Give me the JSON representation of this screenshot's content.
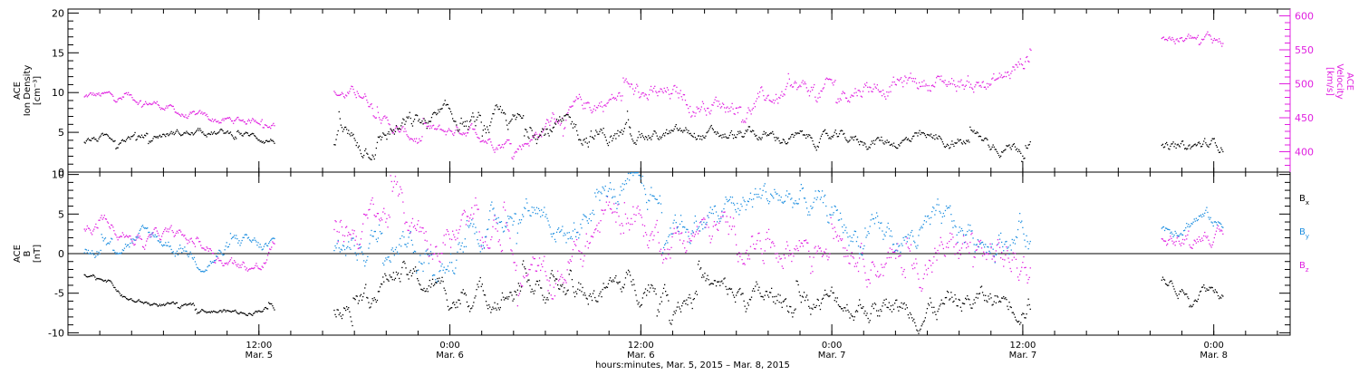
{
  "chart_data": [
    {
      "type": "scatter",
      "panel": "top",
      "left_axis": {
        "label_lines": [
          "ACE",
          "Ion Density",
          "[cm⁻³]"
        ],
        "ylim": [
          0,
          20.5
        ],
        "ticks": [
          0,
          5,
          10,
          15,
          20
        ],
        "color": "#000000"
      },
      "right_axis": {
        "label_lines": [
          "ACE",
          "Velocity",
          "[km/s]"
        ],
        "ylim": [
          370,
          610
        ],
        "ticks": [
          400,
          450,
          500,
          550,
          600
        ],
        "color": "#e020e0"
      },
      "series": [
        {
          "axis": "left",
          "color": "#000000",
          "segments": [
            {
              "x": [
                1,
                13
              ],
              "start": 4.0,
              "base": [
                [
                  1,
                  4.2
                ],
                [
                  3,
                  4.6
                ],
                [
                  5,
                  4.9
                ],
                [
                  7,
                  5.0
                ],
                [
                  9,
                  5.0
                ],
                [
                  11,
                  4.5
                ],
                [
                  13,
                  4.0
                ]
              ],
              "noise": 0.6
            },
            {
              "x": [
                16.7,
                35.3
              ],
              "start": 3.4,
              "base": [
                [
                  16.7,
                  3.4
                ],
                [
                  18.5,
                  3.4
                ],
                [
                  20,
                  5.5
                ],
                [
                  22,
                  6.0
                ],
                [
                  24,
                  6.5
                ],
                [
                  26,
                  6.5
                ],
                [
                  28,
                  6.0
                ],
                [
                  30,
                  5.5
                ],
                [
                  32,
                  5.0
                ],
                [
                  34,
                  4.5
                ],
                [
                  35.3,
                  4.5
                ]
              ],
              "noise": 1.6
            },
            {
              "x": [
                35.3,
                60.5
              ],
              "start": 4.5,
              "base": [
                [
                  35.3,
                  4.5
                ],
                [
                  38,
                  4.8
                ],
                [
                  42,
                  4.5
                ],
                [
                  46,
                  4.2
                ],
                [
                  50,
                  4.0
                ],
                [
                  54,
                  4.0
                ],
                [
                  58,
                  3.6
                ],
                [
                  60.5,
                  3.2
                ]
              ],
              "noise": 1.0
            },
            {
              "x": [
                68.7,
                72.6
              ],
              "start": 3.0,
              "base": [
                [
                  68.7,
                  3.0
                ],
                [
                  70,
                  2.8
                ],
                [
                  71,
                  3.5
                ],
                [
                  72.6,
                  3.6
                ]
              ],
              "noise": 1.0
            }
          ]
        },
        {
          "axis": "right",
          "color": "#e020e0",
          "segments": [
            {
              "x": [
                1,
                13
              ],
              "start": 480,
              "base": [
                [
                  1,
                  484
                ],
                [
                  3,
                  480
                ],
                [
                  5,
                  475
                ],
                [
                  7,
                  452
                ],
                [
                  9,
                  446
                ],
                [
                  11,
                  446
                ],
                [
                  12.2,
                  455
                ],
                [
                  13,
                  440
                ]
              ],
              "noise": 8
            },
            {
              "x": [
                16.7,
                30
              ],
              "start": 485,
              "base": [
                [
                  16.7,
                  486
                ],
                [
                  18.5,
                  482
                ],
                [
                  19.5,
                  440
                ],
                [
                  21,
                  420
                ],
                [
                  23,
                  425
                ],
                [
                  25,
                  440
                ],
                [
                  26,
                  420
                ],
                [
                  28,
                  415
                ],
                [
                  30,
                  440
                ]
              ],
              "noise": 12
            },
            {
              "x": [
                30,
                60.5
              ],
              "start": 450,
              "base": [
                [
                  30,
                  450
                ],
                [
                  34,
                  480
                ],
                [
                  38,
                  480
                ],
                [
                  42,
                  470
                ],
                [
                  46,
                  490
                ],
                [
                  50,
                  500
                ],
                [
                  54,
                  505
                ],
                [
                  58,
                  500
                ],
                [
                  59.5,
                  530
                ],
                [
                  60.5,
                  555
                ]
              ],
              "noise": 18
            },
            {
              "x": [
                68.7,
                72.6
              ],
              "start": 570,
              "base": [
                [
                  68.7,
                  575
                ],
                [
                  70,
                  560
                ],
                [
                  71.5,
                  570
                ],
                [
                  72.6,
                  560
                ]
              ],
              "noise": 12
            }
          ]
        }
      ]
    },
    {
      "type": "scatter",
      "panel": "bottom",
      "axis": {
        "label_lines": [
          "ACE",
          "B",
          "[nT]"
        ],
        "ylim": [
          -10.3,
          10.3
        ],
        "ticks": [
          -10,
          -5,
          0,
          5,
          10
        ],
        "zero_line": true
      },
      "legend": {
        "position": "right",
        "items": [
          {
            "name": "Bx",
            "base": "B",
            "sub": "x",
            "color": "#000000"
          },
          {
            "name": "By",
            "base": "B",
            "sub": "y",
            "color": "#1e8fe0"
          },
          {
            "name": "Bz",
            "base": "B",
            "sub": "z",
            "color": "#e020e0"
          }
        ]
      },
      "series": [
        {
          "name": "Bx",
          "color": "#000000",
          "segments": [
            {
              "x": [
                1,
                13
              ],
              "start": -2.5,
              "base": [
                [
                  1,
                  -2.5
                ],
                [
                  2.2,
                  -3.0
                ],
                [
                  3.2,
                  -6.0
                ],
                [
                  5,
                  -6.4
                ],
                [
                  7,
                  -6.6
                ],
                [
                  9,
                  -7.2
                ],
                [
                  11,
                  -7.4
                ],
                [
                  12.2,
                  -6.5
                ],
                [
                  13,
                  -7.5
                ]
              ],
              "noise": 0.4
            },
            {
              "x": [
                16.7,
                60.5
              ],
              "start": -6.5,
              "base": [
                [
                  16.7,
                  -6.5
                ],
                [
                  18.5,
                  -5.5
                ],
                [
                  20,
                  -2.0
                ],
                [
                  22,
                  -4.0
                ],
                [
                  24,
                  -5.5
                ],
                [
                  28,
                  -4.5
                ],
                [
                  32,
                  -5.0
                ],
                [
                  36,
                  -3.5
                ],
                [
                  40,
                  -5.0
                ],
                [
                  44,
                  -6.0
                ],
                [
                  48,
                  -6.0
                ],
                [
                  52,
                  -7.0
                ],
                [
                  56,
                  -6.0
                ],
                [
                  60.5,
                  -5.5
                ]
              ],
              "noise": 2.0
            },
            {
              "x": [
                68.7,
                72.6
              ],
              "start": -3.5,
              "base": [
                [
                  68.7,
                  -3.5
                ],
                [
                  70,
                  -5.0
                ],
                [
                  71,
                  -3.5
                ],
                [
                  72.6,
                  -5.0
                ]
              ],
              "noise": 1.0
            }
          ]
        },
        {
          "name": "By",
          "color": "#1e8fe0",
          "segments": [
            {
              "x": [
                1,
                13
              ],
              "start": 0.5,
              "base": [
                [
                  1,
                  0.5
                ],
                [
                  3,
                  2.0
                ],
                [
                  5,
                  2.0
                ],
                [
                  7,
                  0.5
                ],
                [
                  8,
                  -1.0
                ],
                [
                  10,
                  1.0
                ],
                [
                  12,
                  0.5
                ],
                [
                  13,
                  1.0
                ]
              ],
              "noise": 1.2
            },
            {
              "x": [
                16.7,
                60.5
              ],
              "start": 1.2,
              "base": [
                [
                  16.7,
                  1.2
                ],
                [
                  18.5,
                  1.2
                ],
                [
                  20,
                  5.0
                ],
                [
                  22,
                  0.0
                ],
                [
                  24,
                  -1.0
                ],
                [
                  27,
                  6.0
                ],
                [
                  29,
                  7.5
                ],
                [
                  31,
                  2.0
                ],
                [
                  33,
                  7.0
                ],
                [
                  36,
                  7.5
                ],
                [
                  39,
                  4.0
                ],
                [
                  43,
                  7.5
                ],
                [
                  46,
                  6.5
                ],
                [
                  48,
                  4.0
                ],
                [
                  50,
                  1.0
                ],
                [
                  54,
                  3.0
                ],
                [
                  58,
                  2.0
                ],
                [
                  60.5,
                  3.5
                ]
              ],
              "noise": 2.5
            },
            {
              "x": [
                68.7,
                72.6
              ],
              "start": 3.0,
              "base": [
                [
                  68.7,
                  3.0
                ],
                [
                  70,
                  4.5
                ],
                [
                  71,
                  5.0
                ],
                [
                  72.6,
                  2.5
                ]
              ],
              "noise": 1.2
            }
          ]
        },
        {
          "name": "Bz",
          "color": "#e020e0",
          "segments": [
            {
              "x": [
                1,
                13
              ],
              "start": 3.5,
              "base": [
                [
                  1,
                  3.0
                ],
                [
                  2,
                  4.0
                ],
                [
                  4,
                  2.0
                ],
                [
                  6,
                  2.5
                ],
                [
                  8,
                  1.0
                ],
                [
                  10,
                  -1.0
                ],
                [
                  12,
                  -2.0
                ],
                [
                  13,
                  4.0
                ]
              ],
              "noise": 1.0
            },
            {
              "x": [
                16.7,
                60.5
              ],
              "start": 2.5,
              "base": [
                [
                  16.7,
                  2.5
                ],
                [
                  20,
                  5.0
                ],
                [
                  23,
                  2.0
                ],
                [
                  26,
                  3.0
                ],
                [
                  28,
                  0.0
                ],
                [
                  30,
                  -5.0
                ],
                [
                  32,
                  2.0
                ],
                [
                  34,
                  6.0
                ],
                [
                  36,
                  2.0
                ],
                [
                  40,
                  3.0
                ],
                [
                  44,
                  1.0
                ],
                [
                  48,
                  3.0
                ],
                [
                  52,
                  -2.0
                ],
                [
                  56,
                  1.0
                ],
                [
                  60.5,
                  -2.0
                ]
              ],
              "noise": 3.0
            },
            {
              "x": [
                68.7,
                72.6
              ],
              "start": 2.0,
              "base": [
                [
                  68.7,
                  2.0
                ],
                [
                  70,
                  1.5
                ],
                [
                  71,
                  3.5
                ],
                [
                  72.6,
                  1.0
                ]
              ],
              "noise": 1.2
            }
          ]
        }
      ]
    }
  ],
  "x_axis": {
    "xlim": [
      0,
      76.8
    ],
    "major_ticks": [
      {
        "x": 12,
        "lines": [
          "12:00",
          "Mar. 5"
        ]
      },
      {
        "x": 24,
        "lines": [
          "0:00",
          "Mar. 6"
        ]
      },
      {
        "x": 36,
        "lines": [
          "12:00",
          "Mar. 6"
        ]
      },
      {
        "x": 48,
        "lines": [
          "0:00",
          "Mar. 7"
        ]
      },
      {
        "x": 60,
        "lines": [
          "12:00",
          "Mar. 7"
        ]
      },
      {
        "x": 72,
        "lines": [
          "0:00",
          "Mar. 8"
        ]
      }
    ],
    "minor_step_hours": 2,
    "xlabel": "hours:minutes, Mar.  5, 2015 – Mar.  8, 2015"
  }
}
